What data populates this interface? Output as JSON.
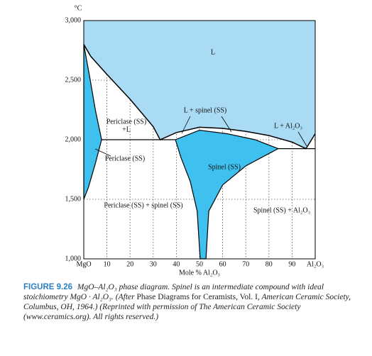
{
  "chart_data": {
    "type": "phase-diagram",
    "y_unit": "°C",
    "xlabel": "Mole % Al₂O₃",
    "xlim": [
      0,
      100
    ],
    "ylim": [
      1000,
      3000
    ],
    "xticks": [
      {
        "value": 0,
        "label": "MgO"
      },
      10,
      20,
      30,
      40,
      50,
      60,
      70,
      80,
      90,
      {
        "value": 100,
        "label": "Al₂O₃"
      }
    ],
    "yticks": [
      {
        "value": 1000,
        "label": "1,000"
      },
      {
        "value": 1500,
        "label": "1,500"
      },
      {
        "value": 2000,
        "label": "2,000"
      },
      {
        "value": 2500,
        "label": "2,500"
      },
      {
        "value": 3000,
        "label": "3,000"
      }
    ],
    "grid": true,
    "regions": [
      {
        "color": "#a9dcf4",
        "x": [
          0,
          0,
          3,
          10,
          20,
          30,
          33,
          40,
          50,
          60,
          70,
          80,
          90,
          96,
          100,
          100
        ],
        "y": [
          3000,
          2800,
          2700,
          2548,
          2340,
          2110,
          2000,
          2060,
          2105,
          2095,
          2070,
          2035,
          1980,
          1925,
          2050,
          3000
        ]
      },
      {
        "color": "#3ec1ee",
        "x": [
          0,
          2.8,
          5,
          7.7,
          5,
          2,
          0
        ],
        "y": [
          2800,
          2500,
          2250,
          2000,
          1800,
          1600,
          1500
        ]
      },
      {
        "color": "#3ec1ee",
        "x": [
          39.6,
          50,
          62,
          74,
          84,
          70,
          60,
          54,
          52.8,
          50.3,
          49,
          46,
          42,
          39.6
        ],
        "y": [
          2000,
          2080,
          2050,
          2000,
          1925,
          1780,
          1620,
          1400,
          1000,
          1000,
          1400,
          1650,
          1850,
          2000
        ]
      }
    ],
    "lines": [
      {
        "x": [
          7.7,
          39.6
        ],
        "y": [
          2000,
          2000
        ]
      },
      {
        "x": [
          84,
          100
        ],
        "y": [
          1925,
          1925
        ]
      }
    ],
    "labels": [
      [
        "L"
      ],
      [
        "Periclase (SS)",
        "+L"
      ],
      [
        "L + spinel (SS)"
      ],
      [
        "L + Al₂O₃"
      ],
      [
        "Periclase (SS)"
      ],
      [
        "Spinel (SS)"
      ],
      [
        "Periclase (SS) + spinel (SS)"
      ],
      [
        "Spinel (SS) + Al₂O₃"
      ]
    ]
  },
  "caption": {
    "label": "FIGURE 9.26",
    "parts": [
      {
        "text": "MgO–Al₂O₃ phase diagram. Spinel is an intermediate compound with ideal stoichiometry MgO · Al₂O₃. (After ",
        "style": "italic"
      },
      {
        "text": "Phase Diagrams for Ceramists, Vol. I",
        "style": "normal"
      },
      {
        "text": ", American Ceramic Society, Columbus, OH, 1964.) (Reprinted with permission of The American Ceramic Society (www.ceramics.org). All rights reserved.)",
        "style": "italic"
      }
    ]
  }
}
